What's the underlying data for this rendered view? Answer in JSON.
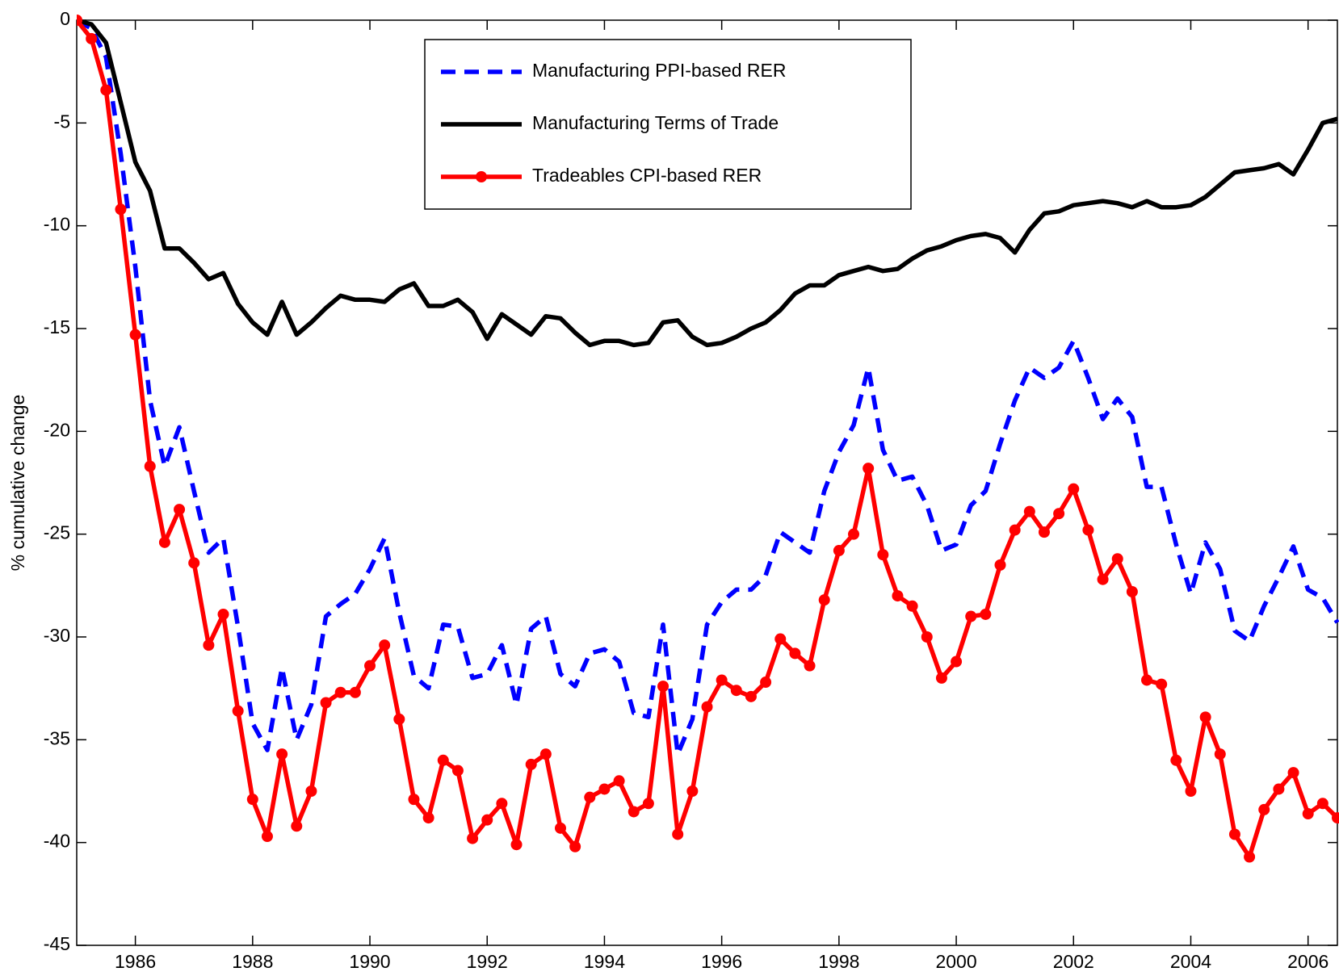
{
  "chart_data": {
    "type": "line",
    "ylabel": "% cumulative change",
    "xlim": [
      1985,
      2006.5
    ],
    "ylim": [
      -45,
      0
    ],
    "xticks": [
      1986,
      1988,
      1990,
      1992,
      1994,
      1996,
      1998,
      2000,
      2002,
      2004,
      2006
    ],
    "yticks": [
      0,
      -5,
      -10,
      -15,
      -20,
      -25,
      -30,
      -35,
      -40,
      -45
    ],
    "grid": false,
    "legend": "top",
    "x": [
      1985,
      1985.25,
      1985.5,
      1985.75,
      1986,
      1986.25,
      1986.5,
      1986.75,
      1987,
      1987.25,
      1987.5,
      1987.75,
      1988,
      1988.25,
      1988.5,
      1988.75,
      1989,
      1989.25,
      1989.5,
      1989.75,
      1990,
      1990.25,
      1990.5,
      1990.75,
      1991,
      1991.25,
      1991.5,
      1991.75,
      1992,
      1992.25,
      1992.5,
      1992.75,
      1993,
      1993.25,
      1993.5,
      1993.75,
      1994,
      1994.25,
      1994.5,
      1994.75,
      1995,
      1995.25,
      1995.5,
      1995.75,
      1996,
      1996.25,
      1996.5,
      1996.75,
      1997,
      1997.25,
      1997.5,
      1997.75,
      1998,
      1998.25,
      1998.5,
      1998.75,
      1999,
      1999.25,
      1999.5,
      1999.75,
      2000,
      2000.25,
      2000.5,
      2000.75,
      2001,
      2001.25,
      2001.5,
      2001.75,
      2002,
      2002.25,
      2002.5,
      2002.75,
      2003,
      2003.25,
      2003.5,
      2003.75,
      2004,
      2004.25,
      2004.5,
      2004.75,
      2005,
      2005.25,
      2005.5,
      2005.75,
      2006,
      2006.25,
      2006.5
    ],
    "series": [
      {
        "name": "Manufacturing PPI-based RER",
        "color": "#0000ff",
        "linestyle": "dashed",
        "marker": "none",
        "values": [
          0,
          -0.4,
          -1.8,
          -6.5,
          -12.0,
          -18.5,
          -21.7,
          -19.8,
          -22.9,
          -25.9,
          -25.2,
          -29.5,
          -34.2,
          -35.5,
          -31.5,
          -35.0,
          -33.3,
          -29.0,
          -28.4,
          -27.9,
          -26.7,
          -25.2,
          -28.8,
          -31.9,
          -32.5,
          -29.4,
          -29.5,
          -32.0,
          -31.8,
          -30.4,
          -33.3,
          -29.6,
          -29.0,
          -31.8,
          -32.4,
          -30.8,
          -30.6,
          -31.2,
          -33.7,
          -33.9,
          -29.4,
          -35.7,
          -34.0,
          -29.4,
          -28.3,
          -27.7,
          -27.7,
          -27.0,
          -24.9,
          -25.4,
          -25.9,
          -22.9,
          -21.0,
          -19.7,
          -16.9,
          -20.9,
          -22.4,
          -22.2,
          -23.6,
          -25.8,
          -25.5,
          -23.6,
          -22.9,
          -20.6,
          -18.5,
          -16.9,
          -17.4,
          -16.9,
          -15.6,
          -17.4,
          -19.4,
          -18.4,
          -19.3,
          -22.7,
          -22.7,
          -25.5,
          -27.9,
          -25.4,
          -26.7,
          -29.7,
          -30.2,
          -28.5,
          -27.1,
          -25.6,
          -27.7,
          -28.1,
          -29.3
        ]
      },
      {
        "name": "Manufacturing Terms of Trade",
        "color": "#000000",
        "linestyle": "solid",
        "marker": "none",
        "values": [
          0,
          -0.2,
          -1.1,
          -4.0,
          -6.9,
          -8.3,
          -11.1,
          -11.1,
          -11.8,
          -12.6,
          -12.3,
          -13.8,
          -14.7,
          -15.3,
          -13.7,
          -15.3,
          -14.7,
          -14.0,
          -13.4,
          -13.6,
          -13.6,
          -13.7,
          -13.1,
          -12.8,
          -13.9,
          -13.9,
          -13.6,
          -14.2,
          -15.5,
          -14.3,
          -14.8,
          -15.3,
          -14.4,
          -14.5,
          -15.2,
          -15.8,
          -15.6,
          -15.6,
          -15.8,
          -15.7,
          -14.7,
          -14.6,
          -15.4,
          -15.8,
          -15.7,
          -15.4,
          -15.0,
          -14.7,
          -14.1,
          -13.3,
          -12.9,
          -12.9,
          -12.4,
          -12.2,
          -12.0,
          -12.2,
          -12.1,
          -11.6,
          -11.2,
          -11.0,
          -10.7,
          -10.5,
          -10.4,
          -10.6,
          -11.3,
          -10.2,
          -9.4,
          -9.3,
          -9.0,
          -8.9,
          -8.8,
          -8.9,
          -9.1,
          -8.8,
          -9.1,
          -9.1,
          -9.0,
          -8.6,
          -8.0,
          -7.4,
          -7.3,
          -7.2,
          -7.0,
          -7.5,
          -6.3,
          -5.0,
          -4.8
        ]
      },
      {
        "name": "Tradeables CPI-based RER",
        "color": "#ff0000",
        "linestyle": "solid",
        "marker": "circle",
        "values": [
          0,
          -0.9,
          -3.4,
          -9.2,
          -15.3,
          -21.7,
          -25.4,
          -23.8,
          -26.4,
          -30.4,
          -28.9,
          -33.6,
          -37.9,
          -39.7,
          -35.7,
          -39.2,
          -37.5,
          -33.2,
          -32.7,
          -32.7,
          -31.4,
          -30.4,
          -34.0,
          -37.9,
          -38.8,
          -36.0,
          -36.5,
          -39.8,
          -38.9,
          -38.1,
          -40.1,
          -36.2,
          -35.7,
          -39.3,
          -40.2,
          -37.8,
          -37.4,
          -37.0,
          -38.5,
          -38.1,
          -32.4,
          -39.6,
          -37.5,
          -33.4,
          -32.1,
          -32.6,
          -32.9,
          -32.2,
          -30.1,
          -30.8,
          -31.4,
          -28.2,
          -25.8,
          -25.0,
          -21.8,
          -26.0,
          -28.0,
          -28.5,
          -30.0,
          -32.0,
          -31.2,
          -29.0,
          -28.9,
          -26.5,
          -24.8,
          -23.9,
          -24.9,
          -24.0,
          -22.8,
          -24.8,
          -27.2,
          -26.2,
          -27.8,
          -32.1,
          -32.3,
          -36.0,
          -37.5,
          -33.9,
          -35.7,
          -39.6,
          -40.7,
          -38.4,
          -37.4,
          -36.6,
          -38.6,
          -38.1,
          -38.8
        ]
      }
    ]
  }
}
